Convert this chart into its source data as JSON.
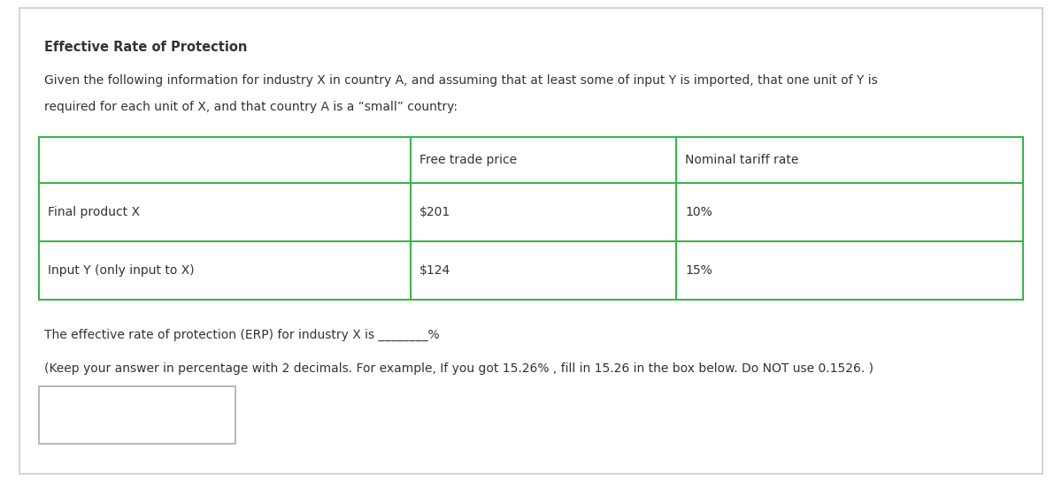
{
  "title": "Effective Rate of Protection",
  "intro_text_line1": "Given the following information for industry X in country A, and assuming that at least some of input Y is imported, that one unit of Y is",
  "intro_text_line2": "required for each unit of X, and that country A is a “small” country:",
  "table_headers": [
    "",
    "Free trade price",
    "Nominal tariff rate"
  ],
  "table_rows": [
    [
      "Final product X",
      "$201",
      "10%"
    ],
    [
      "Input Y (only input to X)",
      "$124",
      "15%"
    ]
  ],
  "erp_text_before": "The effective rate of protection (ERP) for industry X is ",
  "erp_underline": "________",
  "erp_text_after": "%",
  "note_text": "(Keep your answer in percentage with 2 decimals. For example, If you got 15.26% , fill in 15.26 in the box below. Do NOT use 0.1526. )",
  "table_border_color": "#3ab54a",
  "bg_color": "#ffffff",
  "text_color": "#333333",
  "title_fontsize": 10.5,
  "body_fontsize": 10,
  "fig_border_color": "#cccccc",
  "answer_box_border": "#aaaaaa"
}
